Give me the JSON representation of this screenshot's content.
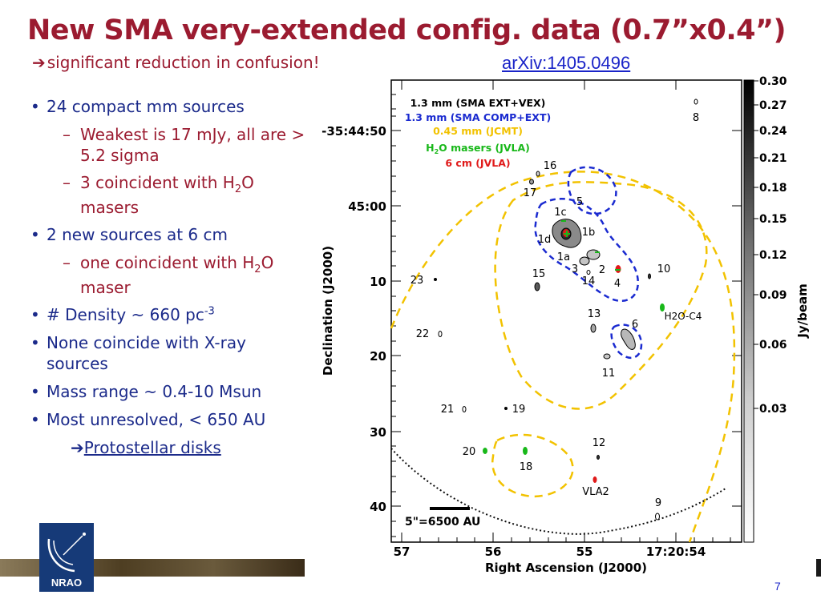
{
  "slide": {
    "title": "New SMA very-extended config. data (0.7”x0.4”)",
    "subtitle_arrow": "➔",
    "subtitle": "significant reduction in confusion!",
    "arxiv": "arXiv:1405.0496",
    "page_number": "7"
  },
  "bullets": {
    "b1": "24 compact mm sources",
    "b1_s1": "Weakest is 17 mJy, all are > 5.2 sigma",
    "b1_s2_a": "3 coincident with H",
    "b1_s2_sub": "2",
    "b1_s2_b": "O masers",
    "b2": "2 new sources at 6 cm",
    "b2_s1_a": "one coincident with H",
    "b2_s1_sub": "2",
    "b2_s1_b": "O maser",
    "b3_a": "# Density ~ 660 pc",
    "b3_sup": "-3",
    "b4": "None coincide with X-ray sources",
    "b5": "Mass range ~ 0.4-10  Msun",
    "b6": "Most unresolved,  < 650 AU",
    "b7_arrow": "➔",
    "b7": "Protostellar disks"
  },
  "logo": {
    "text": "NRAO",
    "bg_color": "#163a78"
  },
  "map": {
    "legend": {
      "l1": "1.3 mm (SMA EXT+VEX)",
      "l2": "1.3 mm (SMA COMP+EXT)",
      "l3": "0.45 mm (JCMT)",
      "l4_a": "H",
      "l4_sub": "2",
      "l4_b": "O masers (JVLA)",
      "l5": "6 cm (JVLA)"
    },
    "legend_colors": {
      "l1": "#000000",
      "l2": "#1a2ad0",
      "l3": "#f2c200",
      "l4": "#19b81a",
      "l5": "#e01a1a"
    },
    "y_axis_label": "Declination (J2000)",
    "x_axis_label": "Right Ascension (J2000)",
    "y_ticks": [
      "-35:44:50",
      "45:00",
      "10",
      "20",
      "30",
      "40"
    ],
    "x_ticks": [
      "57",
      "56",
      "55",
      "17:20:54"
    ],
    "scale_bar_label": "5\"=6500 AU",
    "colorbar_ticks": [
      "0.30",
      "0.27",
      "0.24",
      "0.21",
      "0.18",
      "0.15",
      "0.12",
      "0.09",
      "0.06",
      "0.03"
    ],
    "colorbar_label": "Jy/beam",
    "source_labels": [
      "8",
      "16",
      "17",
      "5",
      "1c",
      "1b",
      "1d",
      "1a",
      "15",
      "3",
      "2",
      "14",
      "4",
      "10",
      "23",
      "13",
      "6",
      "H2O-C4",
      "22",
      "11",
      "21",
      "19",
      "12",
      "20",
      "18",
      "VLA2",
      "9"
    ]
  }
}
